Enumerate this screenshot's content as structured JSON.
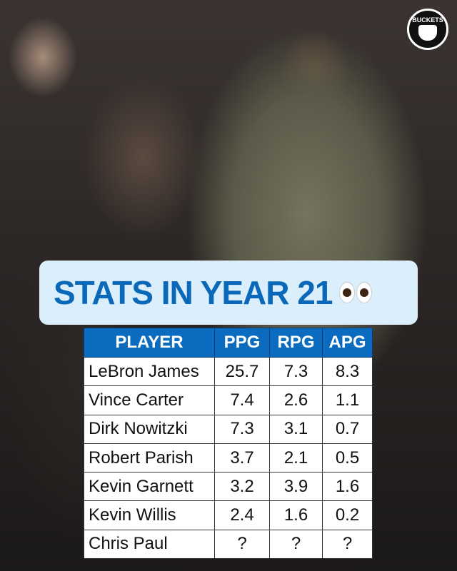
{
  "logo": {
    "text": "BUCKETS"
  },
  "banner": {
    "title": "STATS IN YEAR 21",
    "emoji": "eyes"
  },
  "table": {
    "headers": [
      "PLAYER",
      "PPG",
      "RPG",
      "APG"
    ],
    "rows": [
      [
        "LeBron James",
        "25.7",
        "7.3",
        "8.3"
      ],
      [
        "Vince Carter",
        "7.4",
        "2.6",
        "1.1"
      ],
      [
        "Dirk Nowitzki",
        "7.3",
        "3.1",
        "0.7"
      ],
      [
        "Robert Parish",
        "3.7",
        "2.1",
        "0.5"
      ],
      [
        "Kevin Garnett",
        "3.2",
        "3.9",
        "1.6"
      ],
      [
        "Kevin Willis",
        "2.4",
        "1.6",
        "0.2"
      ],
      [
        "Chris Paul",
        "?",
        "?",
        "?"
      ]
    ]
  },
  "colors": {
    "accent": "#0b6cbf",
    "banner_bg": "#dbeefc"
  }
}
